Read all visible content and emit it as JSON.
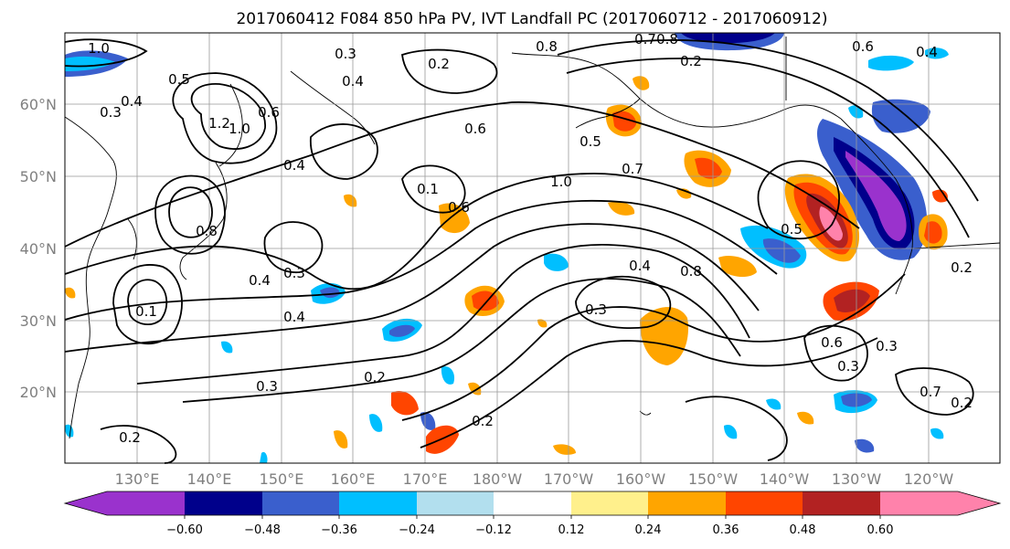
{
  "title": "2017060412 F084 850 hPa PV, IVT Landfall PC (2017060712 - 2017060912)",
  "lat_labels": [
    "60°N",
    "50°N",
    "40°N",
    "30°N",
    "20°N"
  ],
  "lon_labels": [
    "130°E",
    "140°E",
    "150°E",
    "160°E",
    "170°E",
    "180°W",
    "170°W",
    "160°W",
    "150°W",
    "140°W",
    "130°W",
    "120°W"
  ],
  "colorbar": {
    "ticks": [
      "−0.60",
      "−0.48",
      "−0.36",
      "−0.24",
      "−0.12",
      "0.12",
      "0.24",
      "0.36",
      "0.48",
      "0.60"
    ],
    "colors": [
      "#9a32cd",
      "#00008b",
      "#3a5fcd",
      "#00bfff",
      "#b2dfee",
      "#ffffff",
      "#fff08c",
      "#ffa500",
      "#ff4500",
      "#b22222",
      "#ff82ab"
    ]
  },
  "contour_labels": [
    {
      "text": "1.0",
      "name": "contour-label-1-0-nw"
    },
    {
      "text": "0.5",
      "name": "contour-label-0-5-a"
    },
    {
      "text": "0.3",
      "name": "contour-label-0-3-a"
    },
    {
      "text": "0.4",
      "name": "contour-label-0-4-a"
    },
    {
      "text": "1.2",
      "name": "contour-label-1-2"
    },
    {
      "text": "1.0",
      "name": "contour-label-1-0-b"
    },
    {
      "text": "0.6",
      "name": "contour-label-0-6-a"
    },
    {
      "text": "0.3",
      "name": "contour-label-0-3-b"
    },
    {
      "text": "0.4",
      "name": "contour-label-0-4-b"
    },
    {
      "text": "0.2",
      "name": "contour-label-0-2-a"
    },
    {
      "text": "0.8",
      "name": "contour-label-0-8-a"
    },
    {
      "text": "0.7",
      "name": "contour-label-0-7-a"
    },
    {
      "text": "0.8",
      "name": "contour-label-0-8-b"
    },
    {
      "text": "0.2",
      "name": "contour-label-0-2-b"
    },
    {
      "text": "0.6",
      "name": "contour-label-0-6-b"
    },
    {
      "text": "0.4",
      "name": "contour-label-0-4-c"
    },
    {
      "text": "0.6",
      "name": "contour-label-0-6-c"
    },
    {
      "text": "0.5",
      "name": "contour-label-0-5-b"
    },
    {
      "text": "0.7",
      "name": "contour-label-0-7-b"
    },
    {
      "text": "0.4",
      "name": "contour-label-0-4-d"
    },
    {
      "text": "1.0",
      "name": "contour-label-1-0-c"
    },
    {
      "text": "0.1",
      "name": "contour-label-0-1-a"
    },
    {
      "text": "0.6",
      "name": "contour-label-0-6-d"
    },
    {
      "text": "0.5",
      "name": "contour-label-0-5-c"
    },
    {
      "text": "0.4",
      "name": "contour-label-0-4-e"
    },
    {
      "text": "0.3",
      "name": "contour-label-0-3-c"
    },
    {
      "text": "0.8",
      "name": "contour-label-0-8-c"
    },
    {
      "text": "0.4",
      "name": "contour-label-0-4-f"
    },
    {
      "text": "0.8",
      "name": "contour-label-0-8-d"
    },
    {
      "text": "0.3",
      "name": "contour-label-0-3-d"
    },
    {
      "text": "0.4",
      "name": "contour-label-0-4-g"
    },
    {
      "text": "0.3",
      "name": "contour-label-0-3-e"
    },
    {
      "text": "0.2",
      "name": "contour-label-0-2-c"
    },
    {
      "text": "0.1",
      "name": "contour-label-0-1-b"
    },
    {
      "text": "0.2",
      "name": "contour-label-0-2-d"
    },
    {
      "text": "0.2",
      "name": "contour-label-0-2-e"
    },
    {
      "text": "0.6",
      "name": "contour-label-0-6-e"
    },
    {
      "text": "0.3",
      "name": "contour-label-0-3-f"
    },
    {
      "text": "0.7",
      "name": "contour-label-0-7-c"
    },
    {
      "text": "0.2",
      "name": "contour-label-0-2-f"
    },
    {
      "text": "0.2",
      "name": "contour-label-0-2-g"
    },
    {
      "text": "0.3",
      "name": "contour-label-0-3-g"
    }
  ]
}
